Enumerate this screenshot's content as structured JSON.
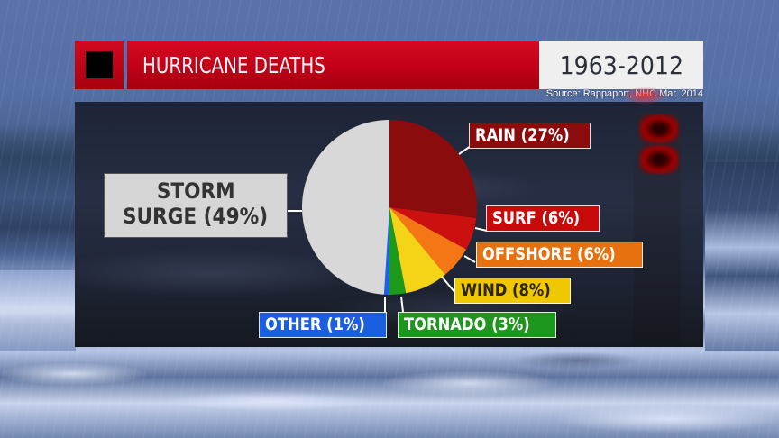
{
  "header": {
    "title": "HURRICANE DEATHS",
    "years": "1963-2012",
    "source": "Source: Rappaport, NHC Mar. 2014"
  },
  "labels": {
    "storm_surge_line1": "STORM",
    "storm_surge_line2": "SURGE (49%)",
    "rain": "RAIN (27%)",
    "surf": "SURF (6%)",
    "offshore": "OFFSHORE (6%)",
    "wind": "WIND (8%)",
    "tornado": "TORNADO (3%)",
    "other": "OTHER (1%)"
  },
  "colors": {
    "title_red": "#c10018",
    "storm_surge": "#d8d8d8",
    "rain": "#8b0c0c",
    "surf": "#cc1010",
    "offshore": "#f47614",
    "wind": "#f5d317",
    "tornado": "#1c9a1c",
    "other": "#1a62e6"
  },
  "chart_data": {
    "type": "pie",
    "title": "HURRICANE DEATHS",
    "subtitle": "1963-2012",
    "source": "Source: Rappaport, NHC Mar. 2014",
    "start_angle": "12 o'clock, clockwise",
    "categories": [
      "Rain",
      "Surf",
      "Offshore",
      "Wind",
      "Tornado",
      "Other",
      "Storm Surge"
    ],
    "values": [
      27,
      6,
      6,
      8,
      3,
      1,
      49
    ],
    "unit": "%",
    "colors": [
      "#8b0c0c",
      "#cc1010",
      "#f47614",
      "#f5d317",
      "#1c9a1c",
      "#1a62e6",
      "#d8d8d8"
    ],
    "legend": "callout labels with leader lines"
  }
}
